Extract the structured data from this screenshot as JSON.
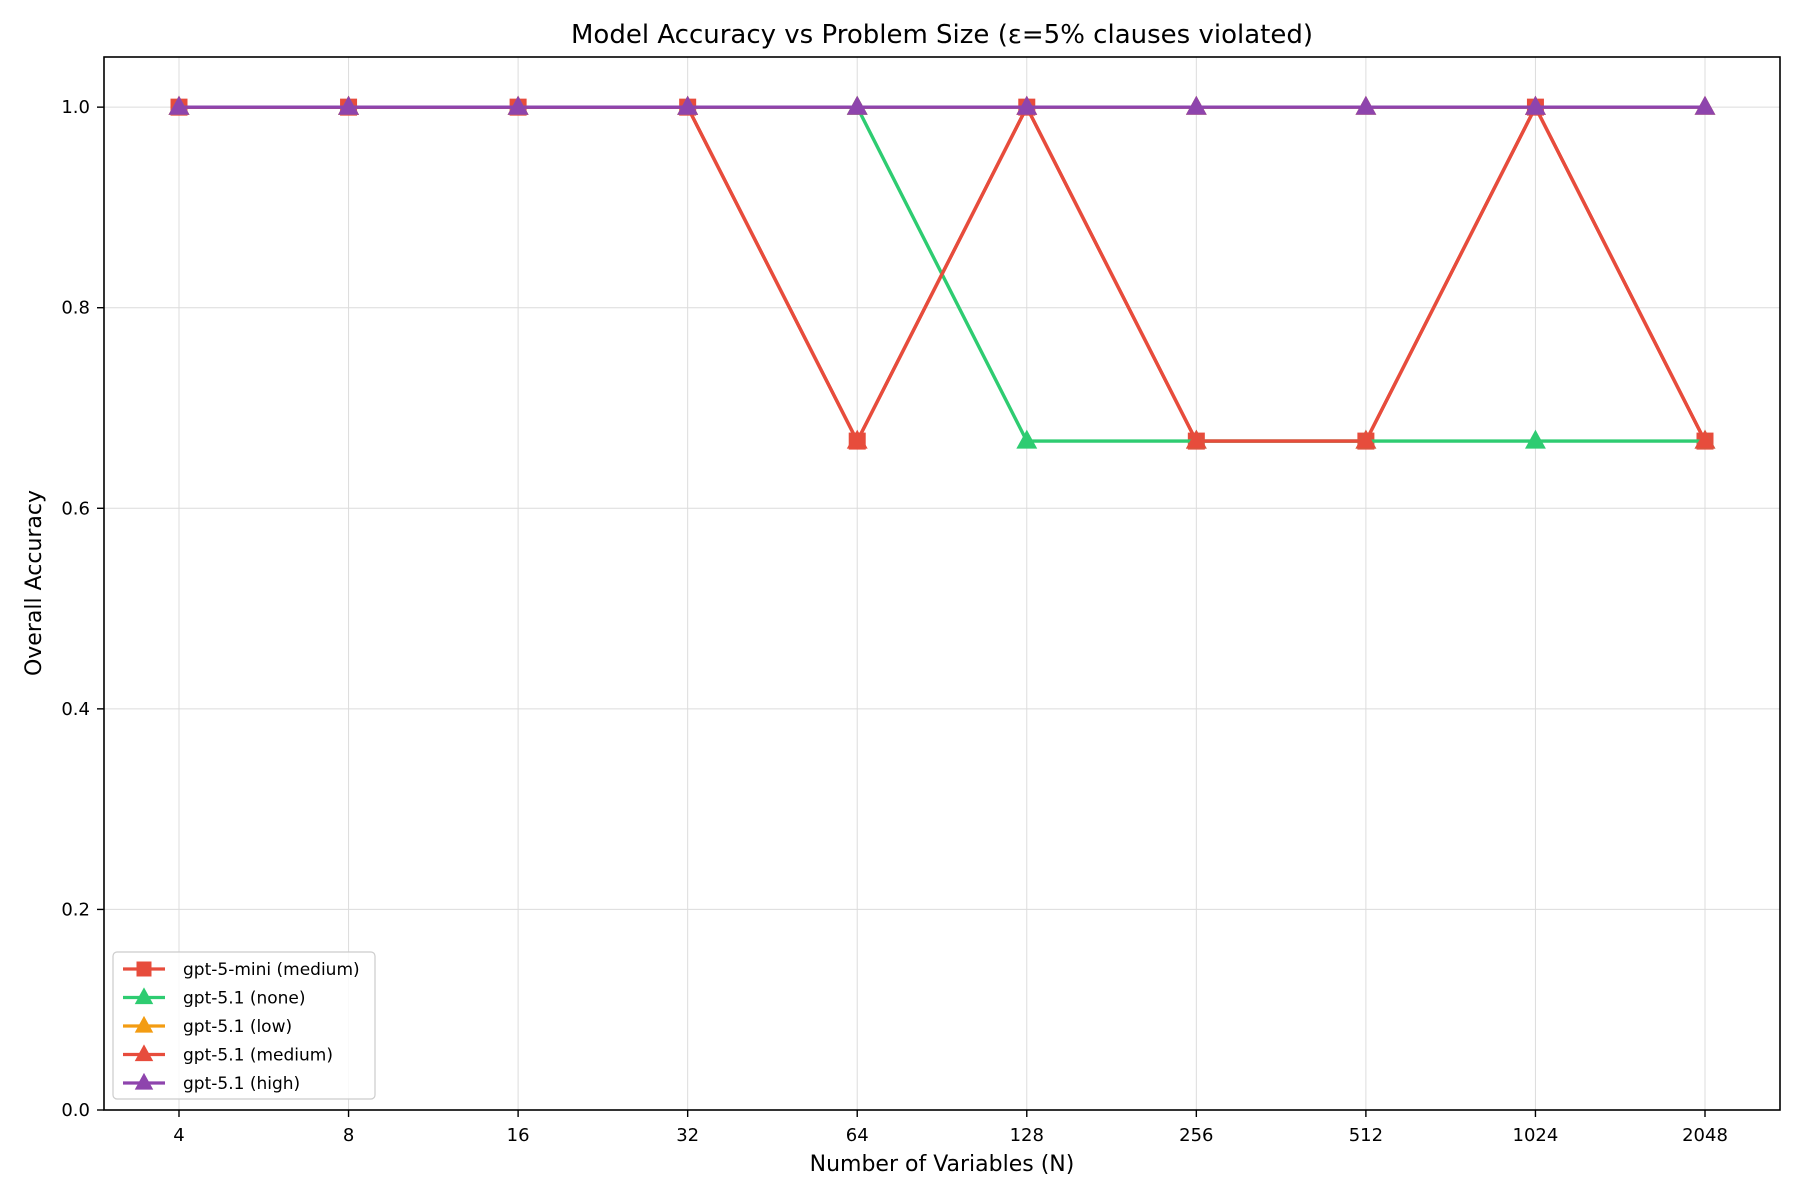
{
  "chart_data": {
    "type": "line",
    "title": "Model Accuracy vs Problem Size (ε=5% clauses violated)",
    "xlabel": "Number of Variables (N)",
    "ylabel": "Overall Accuracy",
    "x": [
      "4",
      "8",
      "16",
      "32",
      "64",
      "128",
      "256",
      "512",
      "1024",
      "2048"
    ],
    "ylim": [
      0,
      1.05
    ],
    "yticks": [
      "0.0",
      "0.2",
      "0.4",
      "0.6",
      "0.8",
      "1.0"
    ],
    "grid": true,
    "legend_position": "lower-left",
    "series": [
      {
        "name": "gpt-5-mini (medium)",
        "color": "#e74c3c",
        "marker": "square",
        "values": [
          1.0,
          1.0,
          1.0,
          1.0,
          0.667,
          1.0,
          0.667,
          0.667,
          1.0,
          0.667
        ]
      },
      {
        "name": "gpt-5.1 (none)",
        "color": "#2ecc71",
        "marker": "triangle",
        "values": [
          1.0,
          1.0,
          1.0,
          1.0,
          1.0,
          0.667,
          0.667,
          0.667,
          0.667,
          0.667
        ]
      },
      {
        "name": "gpt-5.1 (low)",
        "color": "#f39c12",
        "marker": "triangle",
        "values": [
          1.0,
          1.0,
          1.0,
          1.0,
          1.0,
          1.0,
          1.0,
          1.0,
          1.0,
          1.0
        ]
      },
      {
        "name": "gpt-5.1 (medium)",
        "color": "#e74c3c",
        "marker": "triangle",
        "values": [
          1.0,
          1.0,
          1.0,
          1.0,
          0.667,
          1.0,
          0.667,
          0.667,
          1.0,
          0.667
        ]
      },
      {
        "name": "gpt-5.1 (high)",
        "color": "#8e44ad",
        "marker": "triangle",
        "values": [
          1.0,
          1.0,
          1.0,
          1.0,
          1.0,
          1.0,
          1.0,
          1.0,
          1.0,
          1.0
        ]
      }
    ]
  }
}
